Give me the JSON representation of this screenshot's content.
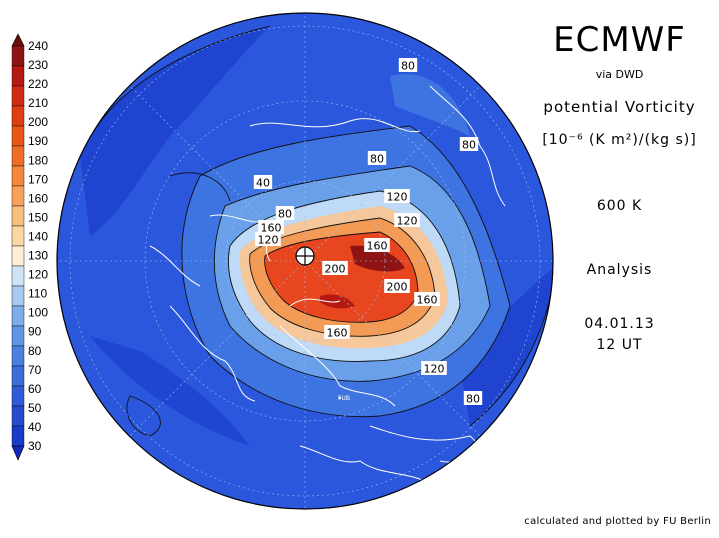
{
  "header": {
    "title": "ECMWF",
    "subtitle": "via DWD",
    "parameter": "potential Vorticity",
    "units": "[10⁻⁶ (K m²)/(kg s)]",
    "level": "600 K",
    "product": "Analysis",
    "date": "04.01.13",
    "time": "12 UT"
  },
  "footer": {
    "credit": "calculated and plotted by FU Berlin"
  },
  "colorbar": {
    "levels": [
      "240",
      "230",
      "220",
      "210",
      "200",
      "190",
      "180",
      "170",
      "160",
      "150",
      "140",
      "130",
      "120",
      "110",
      "100",
      "90",
      "80",
      "70",
      "60",
      "50",
      "40",
      "30"
    ],
    "colors": [
      "#6a0d0d",
      "#8e1313",
      "#b41a12",
      "#d12a12",
      "#e03d12",
      "#ea5518",
      "#f06d28",
      "#f4883c",
      "#f7a25a",
      "#f9bd7e",
      "#fbd7a6",
      "#fdeed6",
      "#cfe3f6",
      "#a6c9f0",
      "#7cade9",
      "#5c96e4",
      "#4a80e0",
      "#3c6ddb",
      "#2f5cd6",
      "#254bcf",
      "#1a3bc6",
      "#1029b9"
    ]
  },
  "map_labels": [
    {
      "text": "80"
    },
    {
      "text": "80"
    },
    {
      "text": "80"
    },
    {
      "text": "40"
    },
    {
      "text": "80"
    },
    {
      "text": "120"
    },
    {
      "text": "160"
    },
    {
      "text": "120"
    },
    {
      "text": "120"
    },
    {
      "text": "160"
    },
    {
      "text": "200"
    },
    {
      "text": "200"
    },
    {
      "text": "160"
    },
    {
      "text": "160"
    },
    {
      "text": "120"
    },
    {
      "text": "80"
    }
  ],
  "place_label": "FUB",
  "colors": {
    "background": "#ffffff",
    "ocean_blue": "#2454dc",
    "pv_core": "#e8461e"
  }
}
